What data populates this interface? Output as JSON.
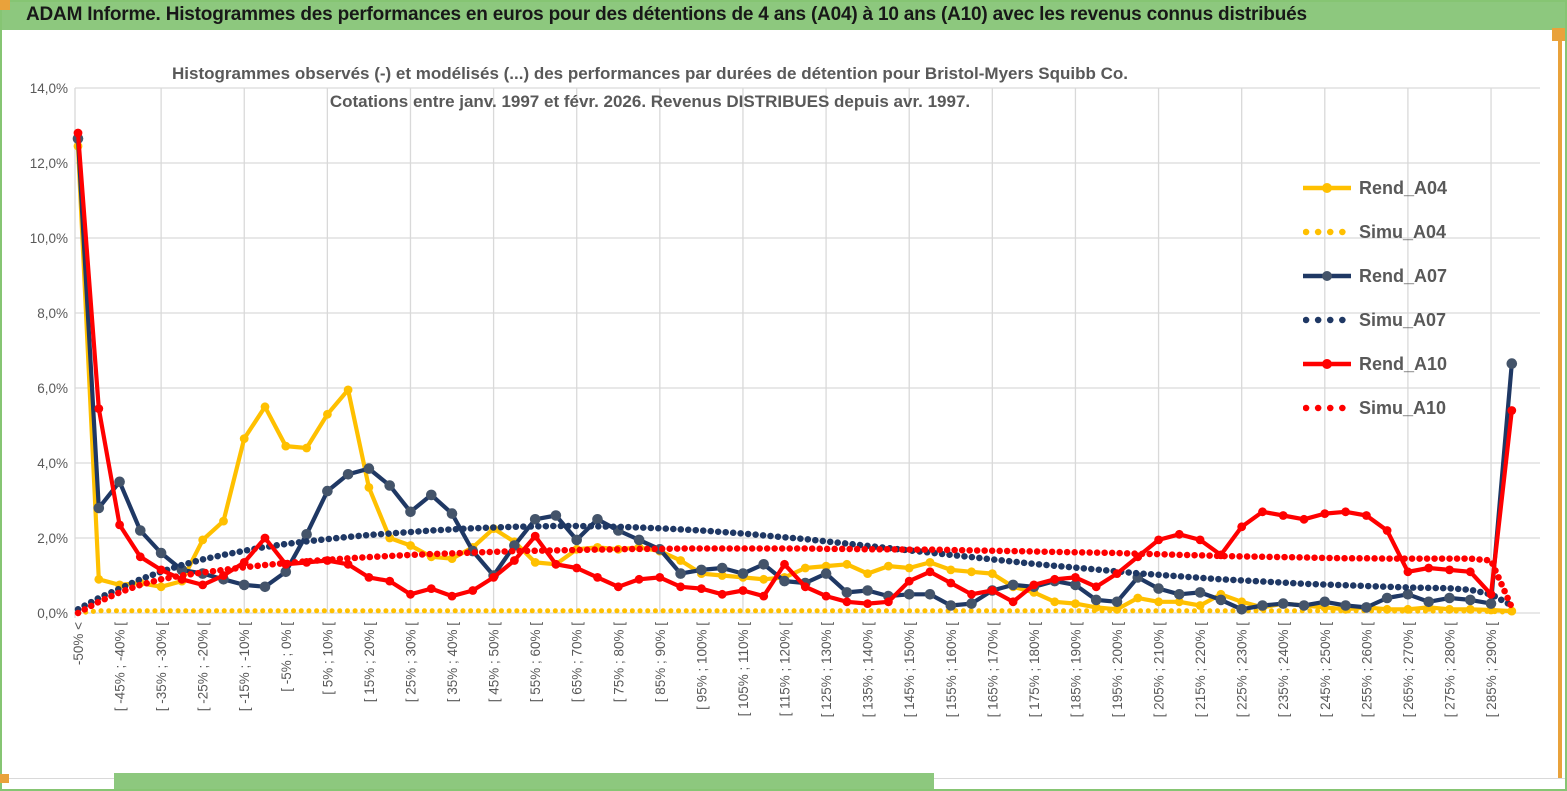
{
  "header": {
    "title": "ADAM Informe. Histogrammes des performances en euros pour des détentions de 4 ans (A04) à 10 ans (A10) avec les revenus connus distribués",
    "bg_color": "#8dc87e",
    "accent_color": "#e9a23b"
  },
  "chart_data": {
    "type": "line",
    "title_line1": "Histogrammes observés (-) et modélisés (...) des performances par durées de détention pour Bristol-Myers Squibb Co.",
    "title_line2": "Cotations entre janv. 1997 et févr. 2026. Revenus DISTRIBUES depuis avr. 1997.",
    "y_axis": {
      "tick_labels": [
        "0,0%",
        "2,0%",
        "4,0%",
        "6,0%",
        "8,0%",
        "10,0%",
        "12,0%",
        "14,0%"
      ],
      "min_pct": 0,
      "max_pct": 14,
      "step_pct": 2,
      "format": "french percent"
    },
    "x_axis": {
      "n_points": 70,
      "bin_width_pct": 5,
      "labels_every_n_points": 2,
      "tick_labels": [
        "-50% <",
        "[ -45% ; -40% [",
        "[ -35% ; -30% [",
        "[ -25% ; -20% [",
        "[ -15% ; -10% [",
        "[ -5% ; 0% [",
        "[ 5% ; 10% [",
        "[ 15% ; 20% [",
        "[ 25% ; 30% [",
        "[ 35% ; 40% [",
        "[ 45% ; 50% [",
        "[ 55% ; 60% [",
        "[ 65% ; 70% [",
        "[ 75% ; 80% [",
        "[ 85% ; 90% [",
        "[ 95% ; 100% [",
        "[ 105% ; 110% [",
        "[ 115% ; 120% [",
        "[ 125% ; 130% [",
        "[ 135% ; 140% [",
        "[ 145% ; 150% [",
        "[ 155% ; 160% [",
        "[ 165% ; 170% [",
        "[ 175% ; 180% [",
        "[ 185% ; 190% [",
        "[ 195% ; 200% [",
        "[ 205% ; 210% [",
        "[ 215% ; 220% [",
        "[ 225% ; 230% [",
        "[ 235% ; 240% [",
        "[ 245% ; 250% [",
        "[ 255% ; 260% [",
        "[ 265% ; 270% [",
        "[ 275% ; 280% [",
        "[ 285% ; 290% ["
      ]
    },
    "grid": {
      "h_step_pct": 2,
      "v_every_points": 4,
      "color": "#d9d9d9"
    },
    "legend": {
      "position": "inside-upper-right"
    },
    "series": [
      {
        "name": "Rend_A04",
        "color": "#FFC000",
        "marker_color": "#FFC000",
        "style": "solid",
        "values": [
          12.45,
          0.9,
          0.75,
          0.8,
          0.7,
          0.85,
          1.95,
          2.45,
          4.65,
          5.5,
          4.45,
          4.4,
          5.3,
          5.95,
          3.35,
          2.0,
          1.8,
          1.5,
          1.45,
          1.75,
          2.25,
          1.9,
          1.35,
          1.3,
          1.7,
          1.75,
          1.7,
          1.75,
          1.65,
          1.4,
          1.05,
          1.0,
          0.95,
          0.9,
          0.95,
          1.2,
          1.25,
          1.3,
          1.05,
          1.25,
          1.2,
          1.35,
          1.15,
          1.1,
          1.05,
          0.7,
          0.55,
          0.3,
          0.25,
          0.15,
          0.1,
          0.4,
          0.3,
          0.3,
          0.2,
          0.5,
          0.3,
          0.15,
          0.25,
          0.2,
          0.15,
          0.1,
          0.15,
          0.1,
          0.1,
          0.15,
          0.1,
          0.1,
          0.08,
          0.05
        ]
      },
      {
        "name": "Simu_A04",
        "color": "#FFC000",
        "style": "dotted",
        "values": [
          0.0,
          0.06,
          0.06,
          0.06,
          0.06,
          0.06,
          0.06,
          0.06,
          0.06,
          0.06,
          0.06,
          0.06,
          0.06,
          0.06,
          0.06,
          0.06,
          0.06,
          0.06,
          0.06,
          0.06,
          0.06,
          0.06,
          0.06,
          0.06,
          0.06,
          0.06,
          0.06,
          0.06,
          0.06,
          0.06,
          0.06,
          0.06,
          0.06,
          0.06,
          0.06,
          0.06,
          0.06,
          0.06,
          0.06,
          0.06,
          0.06,
          0.06,
          0.06,
          0.06,
          0.06,
          0.06,
          0.06,
          0.06,
          0.06,
          0.06,
          0.06,
          0.06,
          0.06,
          0.06,
          0.06,
          0.06,
          0.06,
          0.06,
          0.06,
          0.06,
          0.06,
          0.06,
          0.06,
          0.05,
          0.05,
          0.05,
          0.05,
          0.05,
          0.04,
          0.02
        ]
      },
      {
        "name": "Rend_A07",
        "color": "#1F3864",
        "marker_color": "#44546A",
        "style": "solid",
        "values": [
          12.65,
          2.8,
          3.5,
          2.2,
          1.6,
          1.15,
          1.05,
          0.9,
          0.75,
          0.7,
          1.1,
          2.1,
          3.25,
          3.7,
          3.85,
          3.4,
          2.7,
          3.15,
          2.65,
          1.65,
          1.0,
          1.8,
          2.5,
          2.6,
          1.95,
          2.5,
          2.2,
          1.95,
          1.7,
          1.05,
          1.15,
          1.2,
          1.05,
          1.3,
          0.85,
          0.8,
          1.05,
          0.55,
          0.6,
          0.45,
          0.5,
          0.5,
          0.2,
          0.25,
          0.6,
          0.75,
          0.7,
          0.85,
          0.75,
          0.35,
          0.3,
          0.95,
          0.65,
          0.5,
          0.55,
          0.35,
          0.1,
          0.2,
          0.25,
          0.2,
          0.3,
          0.2,
          0.15,
          0.4,
          0.5,
          0.3,
          0.4,
          0.35,
          0.25,
          6.65
        ]
      },
      {
        "name": "Simu_A07",
        "color": "#1F3864",
        "style": "dotted",
        "values": [
          0.1,
          0.4,
          0.65,
          0.9,
          1.1,
          1.28,
          1.43,
          1.55,
          1.66,
          1.76,
          1.84,
          1.91,
          1.97,
          2.03,
          2.08,
          2.12,
          2.16,
          2.2,
          2.23,
          2.26,
          2.28,
          2.3,
          2.31,
          2.32,
          2.32,
          2.31,
          2.3,
          2.28,
          2.26,
          2.23,
          2.2,
          2.16,
          2.12,
          2.07,
          2.02,
          1.97,
          1.91,
          1.85,
          1.79,
          1.73,
          1.67,
          1.61,
          1.55,
          1.49,
          1.43,
          1.37,
          1.31,
          1.26,
          1.21,
          1.16,
          1.11,
          1.06,
          1.02,
          0.98,
          0.94,
          0.9,
          0.87,
          0.84,
          0.81,
          0.78,
          0.76,
          0.74,
          0.72,
          0.7,
          0.68,
          0.67,
          0.66,
          0.62,
          0.5,
          0.2
        ]
      },
      {
        "name": "Rend_A10",
        "color": "#FF0000",
        "marker_color": "#FF0000",
        "style": "solid",
        "values": [
          12.8,
          5.45,
          2.35,
          1.5,
          1.15,
          0.9,
          0.75,
          1.0,
          1.35,
          2.0,
          1.3,
          1.35,
          1.4,
          1.3,
          0.95,
          0.85,
          0.5,
          0.65,
          0.45,
          0.6,
          0.95,
          1.4,
          2.05,
          1.3,
          1.2,
          0.95,
          0.7,
          0.9,
          0.95,
          0.7,
          0.65,
          0.5,
          0.6,
          0.45,
          1.3,
          0.7,
          0.45,
          0.3,
          0.25,
          0.3,
          0.85,
          1.1,
          0.8,
          0.5,
          0.6,
          0.3,
          0.75,
          0.9,
          0.95,
          0.7,
          1.05,
          1.5,
          1.95,
          2.1,
          1.95,
          1.55,
          2.3,
          2.7,
          2.6,
          2.5,
          2.65,
          2.7,
          2.6,
          2.2,
          1.1,
          1.2,
          1.15,
          1.1,
          0.5,
          5.4
        ]
      },
      {
        "name": "Simu_A10",
        "color": "#FF0000",
        "style": "dotted",
        "values": [
          0.0,
          0.3,
          0.55,
          0.75,
          0.9,
          1.0,
          1.08,
          1.15,
          1.22,
          1.28,
          1.33,
          1.38,
          1.42,
          1.46,
          1.49,
          1.52,
          1.55,
          1.57,
          1.59,
          1.61,
          1.63,
          1.65,
          1.66,
          1.67,
          1.68,
          1.69,
          1.7,
          1.71,
          1.71,
          1.72,
          1.72,
          1.72,
          1.72,
          1.72,
          1.72,
          1.72,
          1.71,
          1.71,
          1.7,
          1.7,
          1.69,
          1.69,
          1.68,
          1.67,
          1.66,
          1.65,
          1.64,
          1.63,
          1.62,
          1.61,
          1.6,
          1.58,
          1.57,
          1.55,
          1.54,
          1.52,
          1.51,
          1.5,
          1.49,
          1.48,
          1.47,
          1.46,
          1.46,
          1.45,
          1.45,
          1.45,
          1.45,
          1.45,
          1.4,
          0.15
        ]
      }
    ]
  }
}
